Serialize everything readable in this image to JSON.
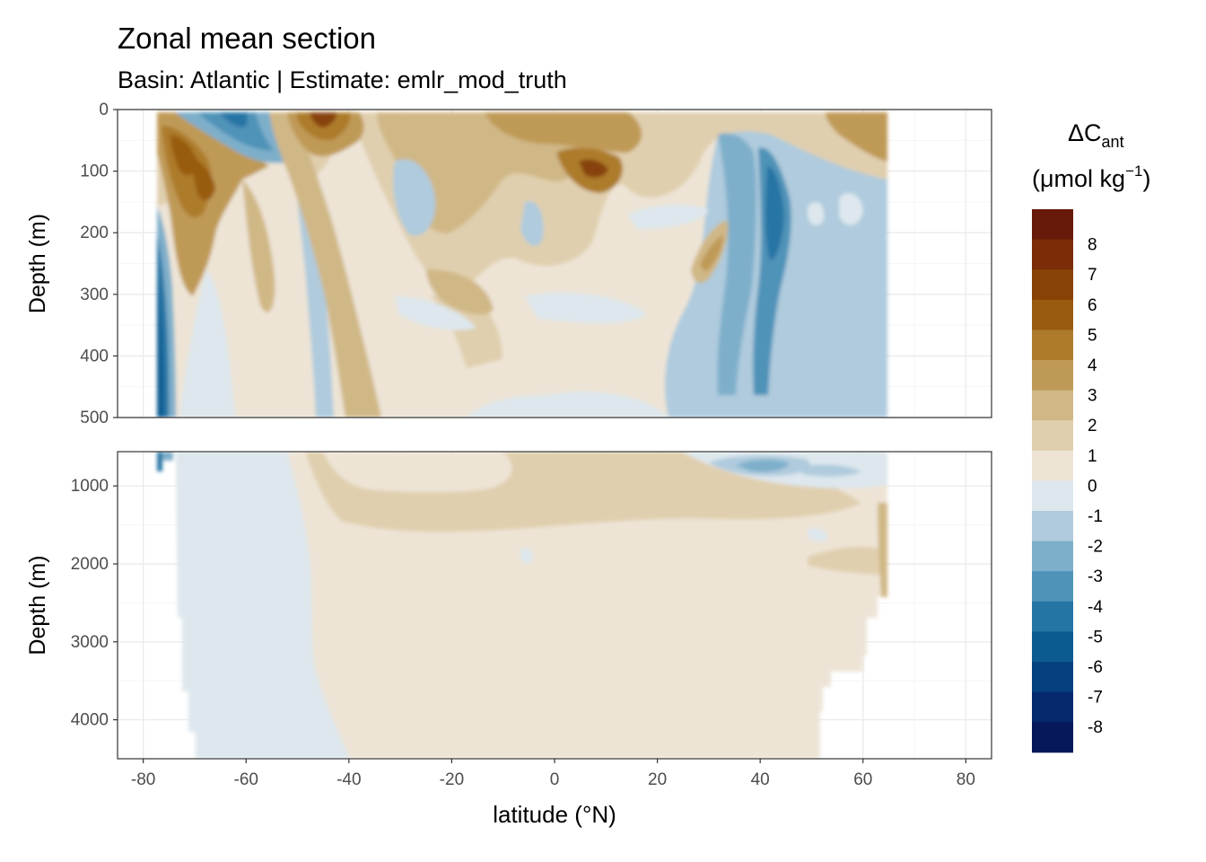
{
  "title": "Zonal mean section",
  "subtitle": "Basin: Atlantic | Estimate: emlr_mod_truth",
  "chart_data": {
    "type": "heatmap",
    "x_label": "latitude (°N)",
    "y_label": "Depth (m)",
    "x_ticks": [
      -80,
      -60,
      -40,
      -20,
      0,
      20,
      40,
      60,
      80
    ],
    "x_range": [
      -85,
      85
    ],
    "data_lat_range": [
      -78,
      65
    ],
    "panels": [
      {
        "name": "upper",
        "y_range": [
          0,
          500
        ],
        "y_ticks": [
          0,
          100,
          200,
          300,
          400,
          500
        ],
        "y_reversed": true
      },
      {
        "name": "lower",
        "y_range": [
          560,
          4500
        ],
        "y_ticks": [
          1000,
          2000,
          3000,
          4000
        ],
        "y_reversed": true
      }
    ],
    "legend": {
      "title_main": "ΔC",
      "title_sub": "ant",
      "title_unit": "(μmol kg",
      "title_sup": "−1",
      "title_close": ")",
      "placement": "right",
      "bins": [
        {
          "label": "",
          "color": "#67190a"
        },
        {
          "label": "8",
          "color": "#7a2d08"
        },
        {
          "label": "7",
          "color": "#874207"
        },
        {
          "label": "6",
          "color": "#985b0f"
        },
        {
          "label": "5",
          "color": "#ad7c2b"
        },
        {
          "label": "4",
          "color": "#bf9a56"
        },
        {
          "label": "3",
          "color": "#d0b786"
        },
        {
          "label": "2",
          "color": "#e0cfae"
        },
        {
          "label": "1",
          "color": "#ede4d6"
        },
        {
          "label": "0",
          "color": "#dde7ed"
        },
        {
          "label": "-1",
          "color": "#afcbdd"
        },
        {
          "label": "-2",
          "color": "#7eafca"
        },
        {
          "label": "-3",
          "color": "#4f93b8"
        },
        {
          "label": "-4",
          "color": "#2575a4"
        },
        {
          "label": "-5",
          "color": "#0b5b91"
        },
        {
          "label": "-6",
          "color": "#05417f"
        },
        {
          "label": "-7",
          "color": "#04296d"
        },
        {
          "label": "-8",
          "color": "#06175a"
        }
      ]
    },
    "grid": true
  }
}
